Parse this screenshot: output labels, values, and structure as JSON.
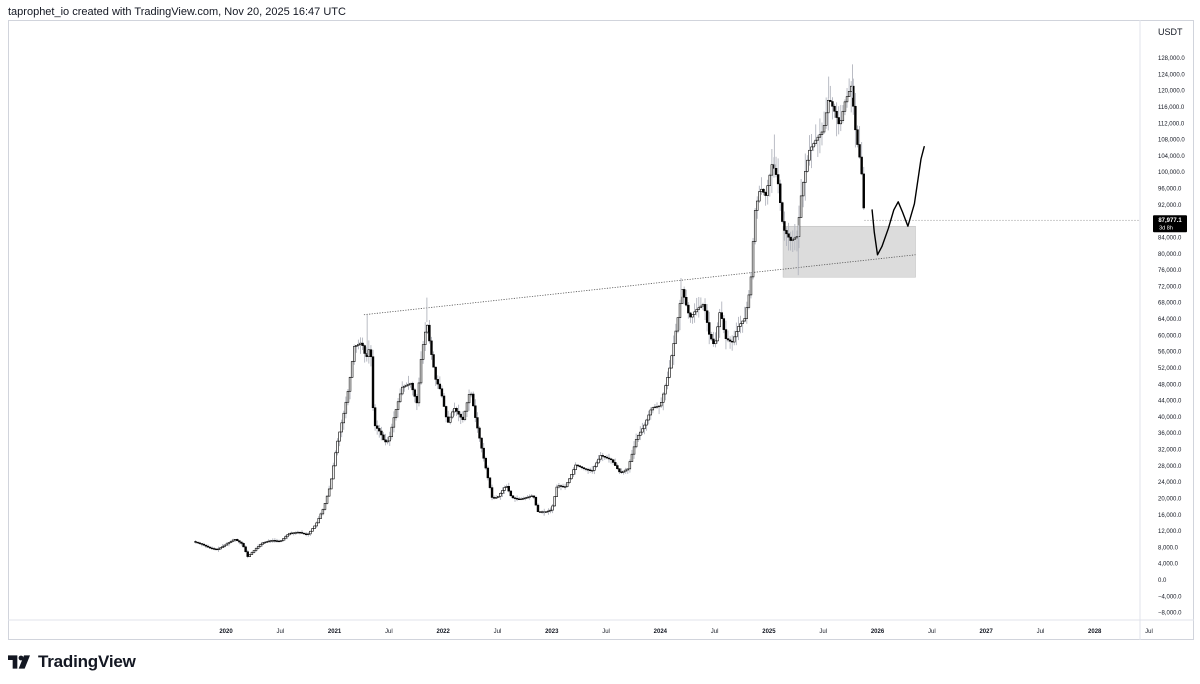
{
  "header": {
    "text": "taprophet_io created with TradingView.com, Nov 20, 2025 16:47 UTC"
  },
  "brand": {
    "name": "TradingView"
  },
  "currency": "USDT",
  "price_label": {
    "price": "87,977.1",
    "countdown": "3d 8h"
  },
  "colors": {
    "candle": "#000000",
    "wick": "#b2b5be",
    "zone": "#d6d6d6",
    "projection": "#000000",
    "line": "#555555"
  },
  "chart_data": {
    "type": "candlestick",
    "ylim": [
      -10000,
      130000
    ],
    "y_ticks": [
      {
        "v": 128000,
        "label": "128,000.0"
      },
      {
        "v": 124000,
        "label": "124,000.0"
      },
      {
        "v": 120000,
        "label": "120,000.0"
      },
      {
        "v": 116000,
        "label": "116,000.0"
      },
      {
        "v": 112000,
        "label": "112,000.0"
      },
      {
        "v": 108000,
        "label": "108,000.0"
      },
      {
        "v": 104000,
        "label": "104,000.0"
      },
      {
        "v": 100000,
        "label": "100,000.0"
      },
      {
        "v": 96000,
        "label": "96,000.0"
      },
      {
        "v": 92000,
        "label": "92,000.0"
      },
      {
        "v": 84000,
        "label": "84,000.0"
      },
      {
        "v": 80000,
        "label": "80,000.0"
      },
      {
        "v": 76000,
        "label": "76,000.0"
      },
      {
        "v": 72000,
        "label": "72,000.0"
      },
      {
        "v": 68000,
        "label": "68,000.0"
      },
      {
        "v": 64000,
        "label": "64,000.0"
      },
      {
        "v": 60000,
        "label": "60,000.0"
      },
      {
        "v": 56000,
        "label": "56,000.0"
      },
      {
        "v": 52000,
        "label": "52,000.0"
      },
      {
        "v": 48000,
        "label": "48,000.0"
      },
      {
        "v": 44000,
        "label": "44,000.0"
      },
      {
        "v": 40000,
        "label": "40,000.0"
      },
      {
        "v": 36000,
        "label": "36,000.0"
      },
      {
        "v": 32000,
        "label": "32,000.0"
      },
      {
        "v": 28000,
        "label": "28,000.0"
      },
      {
        "v": 24000,
        "label": "24,000.0"
      },
      {
        "v": 20000,
        "label": "20,000.0"
      },
      {
        "v": 16000,
        "label": "16,000.0"
      },
      {
        "v": 12000,
        "label": "12,000.0"
      },
      {
        "v": 8000,
        "label": "8,000.0"
      },
      {
        "v": 4000,
        "label": "4,000.0"
      },
      {
        "v": 0,
        "label": "0.0"
      },
      {
        "v": -4000,
        "label": "−4,000.0"
      },
      {
        "v": -8000,
        "label": "−8,000.0"
      }
    ],
    "x_ticks": [
      {
        "t": 2020.0,
        "label": "2020"
      },
      {
        "t": 2020.5,
        "label": "Jul"
      },
      {
        "t": 2021.0,
        "label": "2021"
      },
      {
        "t": 2021.5,
        "label": "Jul"
      },
      {
        "t": 2022.0,
        "label": "2022"
      },
      {
        "t": 2022.5,
        "label": "Jul"
      },
      {
        "t": 2023.0,
        "label": "2023"
      },
      {
        "t": 2023.5,
        "label": "Jul"
      },
      {
        "t": 2024.0,
        "label": "2024"
      },
      {
        "t": 2024.5,
        "label": "Jul"
      },
      {
        "t": 2025.0,
        "label": "2025"
      },
      {
        "t": 2025.5,
        "label": "Jul"
      },
      {
        "t": 2026.0,
        "label": "2026"
      },
      {
        "t": 2026.5,
        "label": "Jul"
      },
      {
        "t": 2027.0,
        "label": "2027"
      },
      {
        "t": 2027.5,
        "label": "Jul"
      },
      {
        "t": 2028.0,
        "label": "2028"
      },
      {
        "t": 2028.5,
        "label": "Jul"
      }
    ],
    "xlim": [
      2019.65,
      2028.95
    ],
    "price_path": [
      [
        2019.7,
        9200
      ],
      [
        2019.78,
        8500
      ],
      [
        2019.85,
        7600
      ],
      [
        2019.92,
        7200
      ],
      [
        2020.0,
        8500
      ],
      [
        2020.08,
        9800
      ],
      [
        2020.15,
        8600
      ],
      [
        2020.2,
        5500
      ],
      [
        2020.25,
        6800
      ],
      [
        2020.33,
        8800
      ],
      [
        2020.42,
        9500
      ],
      [
        2020.5,
        9200
      ],
      [
        2020.58,
        11200
      ],
      [
        2020.67,
        11500
      ],
      [
        2020.75,
        10800
      ],
      [
        2020.83,
        13500
      ],
      [
        2020.9,
        17500
      ],
      [
        2020.96,
        23000
      ],
      [
        2021.02,
        33000
      ],
      [
        2021.08,
        40000
      ],
      [
        2021.13,
        47000
      ],
      [
        2021.18,
        57000
      ],
      [
        2021.25,
        58000
      ],
      [
        2021.29,
        54000
      ],
      [
        2021.33,
        57500
      ],
      [
        2021.36,
        38000
      ],
      [
        2021.42,
        36000
      ],
      [
        2021.46,
        33500
      ],
      [
        2021.5,
        34000
      ],
      [
        2021.55,
        40000
      ],
      [
        2021.62,
        47000
      ],
      [
        2021.7,
        48000
      ],
      [
        2021.76,
        43000
      ],
      [
        2021.8,
        55000
      ],
      [
        2021.85,
        63000
      ],
      [
        2021.88,
        57000
      ],
      [
        2021.93,
        49000
      ],
      [
        2021.98,
        46000
      ],
      [
        2022.04,
        38000
      ],
      [
        2022.1,
        42000
      ],
      [
        2022.18,
        39000
      ],
      [
        2022.25,
        46500
      ],
      [
        2022.3,
        39000
      ],
      [
        2022.37,
        30000
      ],
      [
        2022.45,
        20000
      ],
      [
        2022.5,
        20000
      ],
      [
        2022.58,
        23000
      ],
      [
        2022.63,
        20000
      ],
      [
        2022.7,
        19500
      ],
      [
        2022.77,
        20000
      ],
      [
        2022.83,
        20500
      ],
      [
        2022.87,
        16500
      ],
      [
        2022.95,
        16500
      ],
      [
        2023.0,
        17000
      ],
      [
        2023.05,
        23000
      ],
      [
        2023.12,
        22500
      ],
      [
        2023.17,
        25000
      ],
      [
        2023.22,
        28000
      ],
      [
        2023.3,
        27000
      ],
      [
        2023.37,
        26500
      ],
      [
        2023.45,
        30300
      ],
      [
        2023.55,
        29200
      ],
      [
        2023.63,
        26000
      ],
      [
        2023.7,
        27000
      ],
      [
        2023.78,
        34500
      ],
      [
        2023.85,
        37500
      ],
      [
        2023.92,
        42000
      ],
      [
        2024.0,
        42500
      ],
      [
        2024.08,
        51000
      ],
      [
        2024.15,
        62000
      ],
      [
        2024.2,
        71000
      ],
      [
        2024.27,
        64000
      ],
      [
        2024.33,
        66000
      ],
      [
        2024.4,
        67500
      ],
      [
        2024.45,
        60000
      ],
      [
        2024.5,
        57000
      ],
      [
        2024.55,
        66000
      ],
      [
        2024.6,
        59000
      ],
      [
        2024.66,
        58000
      ],
      [
        2024.72,
        62000
      ],
      [
        2024.78,
        64000
      ],
      [
        2024.83,
        72000
      ],
      [
        2024.87,
        90000
      ],
      [
        2024.92,
        96000
      ],
      [
        2024.97,
        94000
      ],
      [
        2025.03,
        102000
      ],
      [
        2025.08,
        98000
      ],
      [
        2025.13,
        86000
      ],
      [
        2025.2,
        83000
      ],
      [
        2025.26,
        84000
      ],
      [
        2025.3,
        95000
      ],
      [
        2025.37,
        105000
      ],
      [
        2025.44,
        108000
      ],
      [
        2025.5,
        110000
      ],
      [
        2025.55,
        118000
      ],
      [
        2025.6,
        115000
      ],
      [
        2025.65,
        111000
      ],
      [
        2025.7,
        117000
      ],
      [
        2025.76,
        121000
      ],
      [
        2025.8,
        109000
      ],
      [
        2025.85,
        101000
      ],
      [
        2025.88,
        87977
      ]
    ],
    "extreme_wicks": [
      [
        2021.3,
        64800
      ],
      [
        2021.85,
        69000
      ],
      [
        2022.93,
        15500
      ],
      [
        2024.19,
        73800
      ],
      [
        2025.05,
        109000
      ],
      [
        2025.27,
        74500
      ],
      [
        2025.55,
        123200
      ],
      [
        2025.77,
        126200
      ]
    ],
    "trendline": {
      "from": [
        2021.27,
        64800
      ],
      "to": [
        2026.35,
        79500
      ]
    },
    "zone": {
      "t0": 2025.13,
      "t1": 2026.35,
      "low": 74000,
      "high": 86500
    },
    "projection": [
      [
        2025.95,
        90500
      ],
      [
        2025.97,
        85000
      ],
      [
        2026.0,
        79500
      ],
      [
        2026.04,
        81500
      ],
      [
        2026.1,
        86000
      ],
      [
        2026.15,
        90500
      ],
      [
        2026.19,
        92500
      ],
      [
        2026.23,
        90000
      ],
      [
        2026.28,
        86500
      ],
      [
        2026.34,
        92000
      ],
      [
        2026.4,
        103000
      ],
      [
        2026.43,
        106000
      ]
    ],
    "last_price": 87977.1
  }
}
